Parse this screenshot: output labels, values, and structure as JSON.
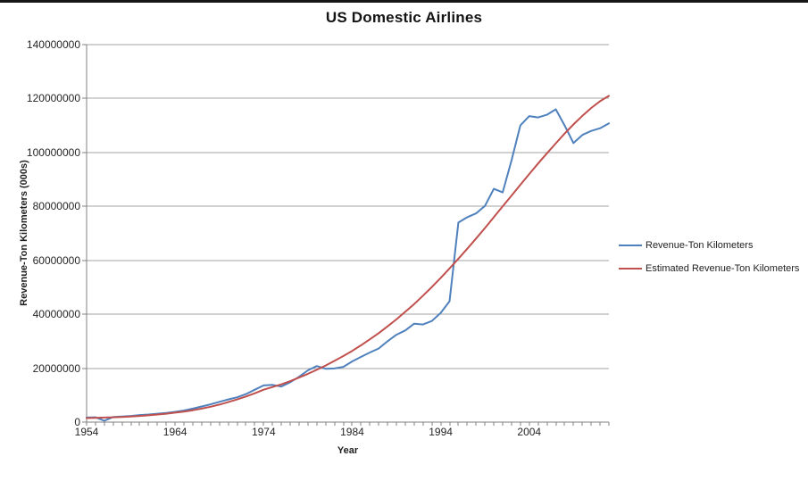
{
  "window": {
    "top_edge_color": "#161616"
  },
  "chart_data": {
    "type": "line",
    "title": "US Domestic Airlines",
    "xlabel": "Year",
    "ylabel": "Revenue-Ton Kilometers (000s)",
    "xlim": [
      1954,
      2013
    ],
    "ylim": [
      0,
      140000000
    ],
    "y_ticks": [
      0,
      20000000,
      40000000,
      60000000,
      80000000,
      100000000,
      120000000,
      140000000
    ],
    "x_tick_labels": [
      1954,
      1964,
      1974,
      1984,
      1994,
      2004
    ],
    "minor_x_tick_interval": 1,
    "grid": "horizontal-major",
    "legend_position": "right",
    "colors": {
      "axis": "#808080",
      "gridline": "#a3a3a3",
      "text": "#262626"
    },
    "x": [
      1954,
      1955,
      1956,
      1957,
      1958,
      1959,
      1960,
      1961,
      1962,
      1963,
      1964,
      1965,
      1966,
      1967,
      1968,
      1969,
      1970,
      1971,
      1972,
      1973,
      1974,
      1975,
      1976,
      1977,
      1978,
      1979,
      1980,
      1981,
      1982,
      1983,
      1984,
      1985,
      1986,
      1987,
      1988,
      1989,
      1990,
      1991,
      1992,
      1993,
      1994,
      1995,
      1996,
      1997,
      1998,
      1999,
      2000,
      2001,
      2002,
      2003,
      2004,
      2005,
      2006,
      2007,
      2008,
      2009,
      2010,
      2011,
      2012,
      2013
    ],
    "series": [
      {
        "name": "Revenue-Ton Kilometers",
        "color": "#4f81bd",
        "values": [
          1700000,
          1800000,
          500000,
          1900000,
          2100000,
          2300000,
          2600000,
          2800000,
          3100000,
          3400000,
          3800000,
          4300000,
          5000000,
          5800000,
          6600000,
          7500000,
          8400000,
          9200000,
          10400000,
          12000000,
          13600000,
          13800000,
          13200000,
          14800000,
          16800000,
          19200000,
          20800000,
          19800000,
          19900000,
          20500000,
          22500000,
          24200000,
          25800000,
          27300000,
          30000000,
          32400000,
          34000000,
          36500000,
          36200000,
          37500000,
          40500000,
          44800000,
          74000000,
          76000000,
          77400000,
          80200000,
          86500000,
          85200000,
          97000000,
          110000000,
          113500000,
          113000000,
          114000000,
          116000000,
          110000000,
          103500000,
          106500000,
          108000000,
          109000000,
          110800000
        ]
      },
      {
        "name": "Estimated Revenue-Ton Kilometers",
        "color": "#c0504d",
        "values": [
          1500000,
          1600000,
          1700000,
          1800000,
          1900000,
          2100000,
          2300000,
          2500000,
          2800000,
          3100000,
          3500000,
          3900000,
          4400000,
          5000000,
          5700000,
          6500000,
          7400000,
          8400000,
          9500000,
          10700000,
          12000000,
          13000000,
          14000000,
          15200000,
          16500000,
          17900000,
          19400000,
          21000000,
          22700000,
          24500000,
          26400000,
          28500000,
          30700000,
          33000000,
          35500000,
          38100000,
          40900000,
          43800000,
          46900000,
          50100000,
          53500000,
          57000000,
          60600000,
          64300000,
          68100000,
          72000000,
          76000000,
          80000000,
          84000000,
          88000000,
          92000000,
          95900000,
          99700000,
          103400000,
          107000000,
          110400000,
          113600000,
          116500000,
          119000000,
          121000000
        ]
      }
    ]
  }
}
